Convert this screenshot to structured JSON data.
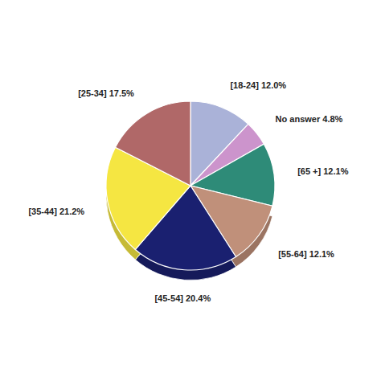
{
  "chart_data": {
    "type": "pie",
    "categories": [
      "[18-24] 12.0%",
      "No answer 4.8%",
      "[65 +] 12.1%",
      "[55-64] 12.1%",
      "[45-54] 20.4%",
      "[35-44] 21.2%",
      "[25-34] 17.5%"
    ],
    "values": [
      12.0,
      4.8,
      12.1,
      12.1,
      20.4,
      21.2,
      17.5
    ],
    "colors": [
      "#aab2d8",
      "#cc94cc",
      "#2e8b78",
      "#c0907a",
      "#1a2070",
      "#f5e642",
      "#b06868"
    ]
  }
}
